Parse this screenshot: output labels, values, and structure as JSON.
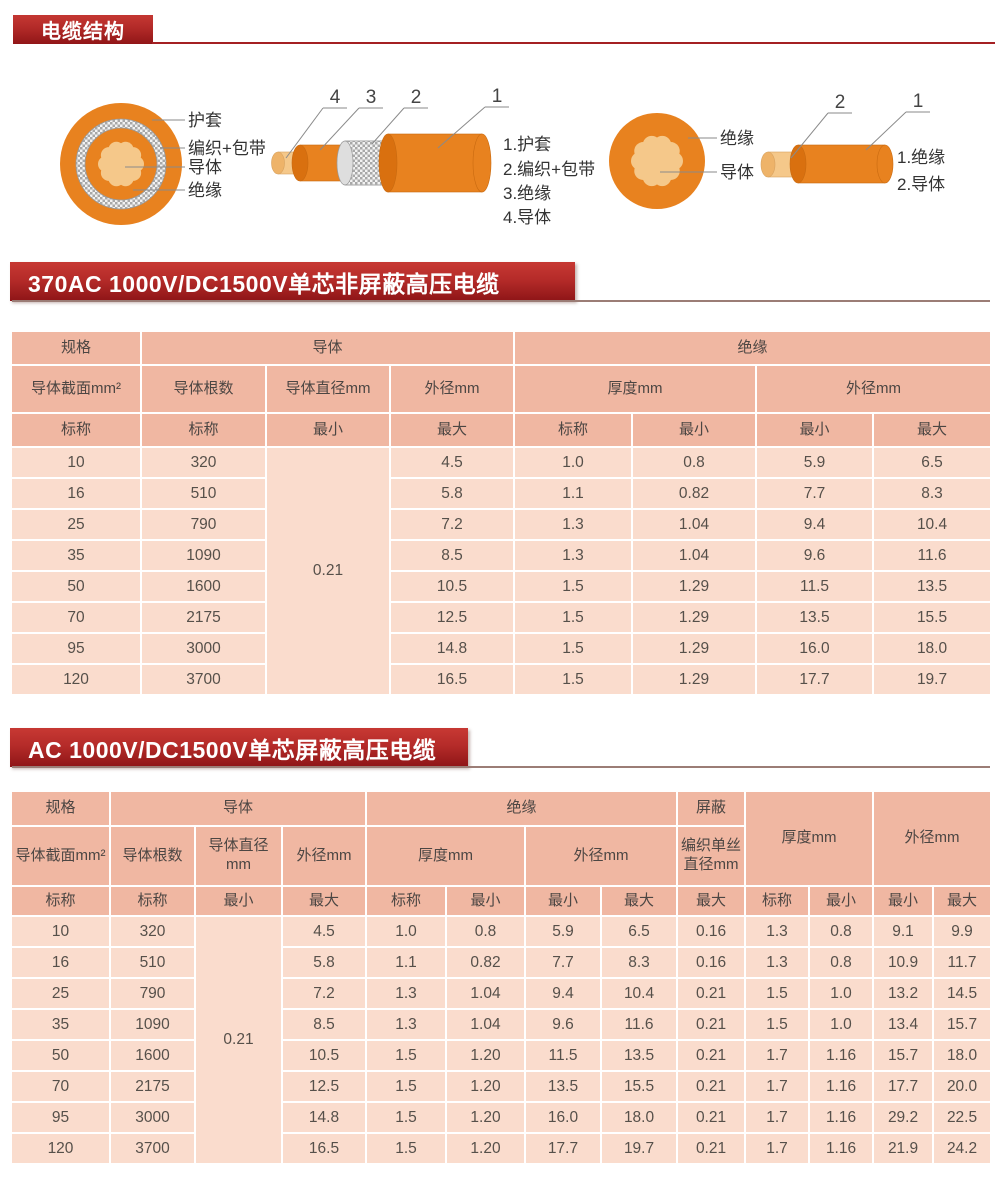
{
  "colors": {
    "banner_red_top": "#c23531",
    "banner_red_bottom": "#911618",
    "table_header_bg": "#f0b7a2",
    "table_body_bg": "#fadccd",
    "cable_orange": "#e8821f",
    "conductor_tan": "#f5c88a",
    "text_dark": "#4c4643"
  },
  "header": {
    "title": "电缆结构"
  },
  "diagrams": {
    "cross1_labels": [
      "护套",
      "编织+包带",
      "导体",
      "绝缘"
    ],
    "cable1_numbers": [
      "4",
      "3",
      "2",
      "1"
    ],
    "cable1_legend": [
      "1.护套",
      "2.编织+包带",
      "3.绝缘",
      "4.导体"
    ],
    "cross2_labels": [
      "绝缘",
      "导体"
    ],
    "cable2_numbers": [
      "2",
      "1"
    ],
    "cable2_legend": [
      "1.绝缘",
      "2.导体"
    ]
  },
  "table1": {
    "title": "370AC 1000V/DC1500V单芯非屏蔽高压电缆",
    "groups": {
      "spec": "规格",
      "conductor": "导体",
      "insulation": "绝缘"
    },
    "columns": {
      "section": "导体截面mm²",
      "strands": "导体根数",
      "strand_dia": "导体直径mm",
      "cond_od": "外径mm",
      "ins_thick": "厚度mm",
      "ins_od": "外径mm"
    },
    "subheads": [
      "标称",
      "标称",
      "最小",
      "最大",
      "标称",
      "最小",
      "最小",
      "最大"
    ],
    "body": {
      "merge_at": 2,
      "merged_value": "0.21",
      "rows": [
        [
          "10",
          "320",
          "4.5",
          "1.0",
          "0.8",
          "5.9",
          "6.5"
        ],
        [
          "16",
          "510",
          "5.8",
          "1.1",
          "0.82",
          "7.7",
          "8.3"
        ],
        [
          "25",
          "790",
          "7.2",
          "1.3",
          "1.04",
          "9.4",
          "10.4"
        ],
        [
          "35",
          "1090",
          "8.5",
          "1.3",
          "1.04",
          "9.6",
          "11.6"
        ],
        [
          "50",
          "1600",
          "10.5",
          "1.5",
          "1.29",
          "11.5",
          "13.5"
        ],
        [
          "70",
          "2175",
          "12.5",
          "1.5",
          "1.29",
          "13.5",
          "15.5"
        ],
        [
          "95",
          "3000",
          "14.8",
          "1.5",
          "1.29",
          "16.0",
          "18.0"
        ],
        [
          "120",
          "3700",
          "16.5",
          "1.5",
          "1.29",
          "17.7",
          "19.7"
        ]
      ]
    }
  },
  "table2": {
    "title": "AC 1000V/DC1500V单芯屏蔽高压电缆",
    "groups": {
      "spec": "规格",
      "conductor": "导体",
      "insulation": "绝缘",
      "shield": "屏蔽"
    },
    "columns": {
      "section": "导体截面mm²",
      "strands": "导体根数",
      "strand_dia": "导体直径mm",
      "cond_od": "外径mm",
      "ins_thick": "厚度mm",
      "ins_od": "外径mm",
      "braid_dia": "编织单丝直径mm",
      "sheath_thick": "厚度mm",
      "sheath_od": "外径mm"
    },
    "subheads": [
      "标称",
      "标称",
      "最小",
      "最大",
      "标称",
      "最小",
      "最小",
      "最大",
      "最大",
      "标称",
      "最小",
      "最小",
      "最大"
    ],
    "body": {
      "merge_at": 2,
      "merged_value": "0.21",
      "rows": [
        [
          "10",
          "320",
          "4.5",
          "1.0",
          "0.8",
          "5.9",
          "6.5",
          "0.16",
          "1.3",
          "0.8",
          "9.1",
          "9.9"
        ],
        [
          "16",
          "510",
          "5.8",
          "1.1",
          "0.82",
          "7.7",
          "8.3",
          "0.16",
          "1.3",
          "0.8",
          "10.9",
          "11.7"
        ],
        [
          "25",
          "790",
          "7.2",
          "1.3",
          "1.04",
          "9.4",
          "10.4",
          "0.21",
          "1.5",
          "1.0",
          "13.2",
          "14.5"
        ],
        [
          "35",
          "1090",
          "8.5",
          "1.3",
          "1.04",
          "9.6",
          "11.6",
          "0.21",
          "1.5",
          "1.0",
          "13.4",
          "15.7"
        ],
        [
          "50",
          "1600",
          "10.5",
          "1.5",
          "1.20",
          "11.5",
          "13.5",
          "0.21",
          "1.7",
          "1.16",
          "15.7",
          "18.0"
        ],
        [
          "70",
          "2175",
          "12.5",
          "1.5",
          "1.20",
          "13.5",
          "15.5",
          "0.21",
          "1.7",
          "1.16",
          "17.7",
          "20.0"
        ],
        [
          "95",
          "3000",
          "14.8",
          "1.5",
          "1.20",
          "16.0",
          "18.0",
          "0.21",
          "1.7",
          "1.16",
          "29.2",
          "22.5"
        ],
        [
          "120",
          "3700",
          "16.5",
          "1.5",
          "1.20",
          "17.7",
          "19.7",
          "0.21",
          "1.7",
          "1.16",
          "21.9",
          "24.2"
        ]
      ]
    }
  }
}
